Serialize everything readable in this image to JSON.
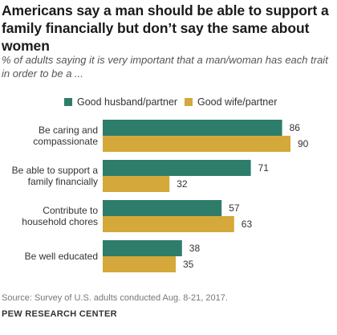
{
  "title": "Americans say a man should be able to support a family financially but don’t say the same about women",
  "subtitle": "% of adults saying it is very important that a man/woman has each trait in order to be a ...",
  "legend": {
    "series1": "Good husband/partner",
    "series2": "Good wife/partner"
  },
  "colors": {
    "series1": "#2e7d6b",
    "series2": "#d4a83a"
  },
  "chart_data": {
    "type": "bar",
    "orientation": "horizontal",
    "categories": [
      [
        "Be caring and",
        "compassionate"
      ],
      [
        "Be able to support a",
        "family financially"
      ],
      [
        "Contribute to",
        "household chores"
      ],
      [
        "Be well educated"
      ]
    ],
    "series": [
      {
        "name": "Good husband/partner",
        "values": [
          86,
          71,
          57,
          38
        ]
      },
      {
        "name": "Good wife/partner",
        "values": [
          90,
          32,
          63,
          35
        ]
      }
    ],
    "xlim": [
      0,
      100
    ],
    "grid": false,
    "legend_position": "top"
  },
  "source": "Source: Survey of U.S. adults conducted Aug. 8-21, 2017.",
  "brand": "PEW RESEARCH CENTER"
}
